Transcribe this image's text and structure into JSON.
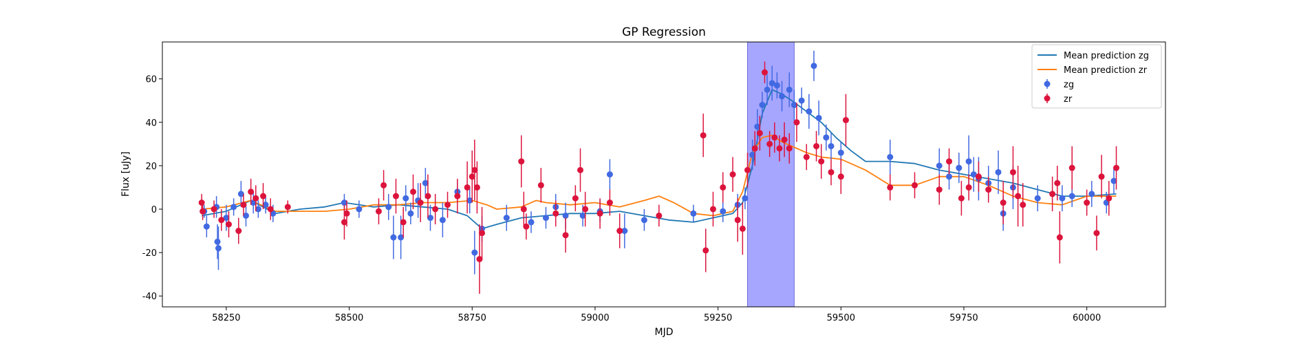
{
  "chart_data": {
    "type": "scatter",
    "title": "GP Regression",
    "xlabel": "MJD",
    "ylabel": "Flux [uJy]",
    "xlim": [
      58120,
      60160
    ],
    "ylim": [
      -45,
      77
    ],
    "x_ticks": [
      58250,
      58500,
      58750,
      59000,
      59250,
      59500,
      59750,
      60000
    ],
    "y_ticks": [
      -40,
      -20,
      0,
      20,
      40,
      60
    ],
    "grid": false,
    "legend_position": "top-right",
    "shaded_region": {
      "x_start": 59310,
      "x_end": 59405,
      "color": "#a6a6ff"
    },
    "series": [
      {
        "name": "Mean prediction zg",
        "kind": "line",
        "color": "#1f77b4",
        "x": [
          58200,
          58250,
          58300,
          58350,
          58400,
          58450,
          58490,
          58550,
          58600,
          58650,
          58700,
          58740,
          58770,
          58800,
          58850,
          58900,
          58950,
          59000,
          59050,
          59100,
          59150,
          59200,
          59240,
          59280,
          59300,
          59320,
          59340,
          59360,
          59380,
          59400,
          59430,
          59460,
          59490,
          59520,
          59550,
          59600,
          59650,
          59700,
          59750,
          59800,
          59850,
          59900,
          59950,
          60000,
          60060
        ],
        "y": [
          -3,
          -1,
          4,
          -2,
          0,
          1,
          3,
          1,
          2,
          1,
          0,
          -3,
          -9,
          -7,
          -4,
          -3,
          -2,
          -2,
          -1,
          -3,
          -5,
          -6,
          -4,
          -2,
          3,
          20,
          44,
          55,
          53,
          50,
          45,
          40,
          33,
          27,
          22,
          22,
          21,
          18,
          16,
          14,
          12,
          9,
          6,
          6,
          7
        ]
      },
      {
        "name": "Mean prediction zr",
        "kind": "line",
        "color": "#ff7f0e",
        "x": [
          58200,
          58250,
          58300,
          58350,
          58400,
          58450,
          58500,
          58550,
          58600,
          58650,
          58700,
          58750,
          58780,
          58800,
          58850,
          58880,
          58900,
          58950,
          59000,
          59050,
          59100,
          59130,
          59160,
          59200,
          59240,
          59280,
          59300,
          59320,
          59340,
          59360,
          59380,
          59400,
          59430,
          59460,
          59500,
          59550,
          59600,
          59650,
          59700,
          59750,
          59800,
          59850,
          59900,
          59950,
          60000,
          60060
        ],
        "y": [
          0,
          1,
          4,
          -1,
          -1,
          -1,
          0,
          2,
          2,
          3,
          3,
          4,
          2,
          0,
          1,
          4,
          3,
          2,
          3,
          1,
          4,
          6,
          3,
          -2,
          -3,
          -1,
          8,
          26,
          33,
          34,
          31,
          29,
          26,
          24,
          23,
          18,
          11,
          11,
          15,
          15,
          11,
          6,
          3,
          2,
          6,
          6
        ]
      },
      {
        "name": "zg",
        "kind": "errorbar",
        "color": "#4169e1",
        "points": [
          [
            58205,
            -1,
            3
          ],
          [
            58210,
            -8,
            5
          ],
          [
            58230,
            1,
            5
          ],
          [
            58232,
            -15,
            8
          ],
          [
            58234,
            -18,
            10
          ],
          [
            58250,
            -4,
            6
          ],
          [
            58265,
            1,
            4
          ],
          [
            58280,
            7,
            6
          ],
          [
            58290,
            -3,
            5
          ],
          [
            58305,
            3,
            5
          ],
          [
            58315,
            0,
            4
          ],
          [
            58330,
            2,
            4
          ],
          [
            58345,
            -2,
            4
          ],
          [
            58490,
            3,
            4
          ],
          [
            58520,
            0,
            4
          ],
          [
            58580,
            1,
            6
          ],
          [
            58590,
            -13,
            10
          ],
          [
            58605,
            -13,
            10
          ],
          [
            58615,
            5,
            6
          ],
          [
            58625,
            -2,
            5
          ],
          [
            58640,
            4,
            8
          ],
          [
            58655,
            12,
            7
          ],
          [
            58665,
            -4,
            6
          ],
          [
            58690,
            -5,
            8
          ],
          [
            58720,
            8,
            5
          ],
          [
            58745,
            4,
            6
          ],
          [
            58755,
            -20,
            10
          ],
          [
            58770,
            -9,
            6
          ],
          [
            58820,
            -4,
            6
          ],
          [
            58870,
            -6,
            5
          ],
          [
            58900,
            -4,
            5
          ],
          [
            58920,
            1,
            6
          ],
          [
            58940,
            -3,
            6
          ],
          [
            58975,
            -3,
            5
          ],
          [
            59010,
            -1,
            5
          ],
          [
            59030,
            16,
            7
          ],
          [
            59060,
            -10,
            8
          ],
          [
            59100,
            -5,
            5
          ],
          [
            59200,
            -2,
            4
          ],
          [
            59260,
            -1,
            5
          ],
          [
            59290,
            2,
            5
          ],
          [
            59305,
            5,
            5
          ],
          [
            59320,
            25,
            7
          ],
          [
            59330,
            38,
            8
          ],
          [
            59340,
            48,
            6
          ],
          [
            59350,
            55,
            7
          ],
          [
            59360,
            58,
            8
          ],
          [
            59370,
            57,
            6
          ],
          [
            59380,
            52,
            7
          ],
          [
            59395,
            55,
            8
          ],
          [
            59405,
            48,
            7
          ],
          [
            59420,
            50,
            6
          ],
          [
            59435,
            45,
            8
          ],
          [
            59445,
            66,
            7
          ],
          [
            59455,
            42,
            8
          ],
          [
            59470,
            33,
            6
          ],
          [
            59480,
            29,
            6
          ],
          [
            59500,
            26,
            5
          ],
          [
            59600,
            24,
            8
          ],
          [
            59700,
            20,
            8
          ],
          [
            59720,
            15,
            6
          ],
          [
            59740,
            19,
            7
          ],
          [
            59760,
            22,
            12
          ],
          [
            59770,
            16,
            8
          ],
          [
            59780,
            14,
            10
          ],
          [
            59800,
            12,
            8
          ],
          [
            59820,
            17,
            10
          ],
          [
            59830,
            -2,
            8
          ],
          [
            59850,
            10,
            10
          ],
          [
            59900,
            5,
            6
          ],
          [
            59950,
            5,
            6
          ],
          [
            59970,
            6,
            5
          ],
          [
            60010,
            7,
            6
          ],
          [
            60040,
            3,
            5
          ],
          [
            60055,
            13,
            6
          ]
        ]
      },
      {
        "name": "zr",
        "kind": "errorbar",
        "color": "#dc143c",
        "points": [
          [
            58200,
            3,
            4
          ],
          [
            58202,
            -1,
            4
          ],
          [
            58225,
            0,
            4
          ],
          [
            58240,
            -5,
            5
          ],
          [
            58255,
            -7,
            6
          ],
          [
            58275,
            -10,
            6
          ],
          [
            58285,
            2,
            5
          ],
          [
            58300,
            8,
            6
          ],
          [
            58310,
            5,
            6
          ],
          [
            58325,
            6,
            6
          ],
          [
            58340,
            0,
            5
          ],
          [
            58375,
            1,
            3
          ],
          [
            58490,
            -6,
            8
          ],
          [
            58495,
            -2,
            6
          ],
          [
            58560,
            -1,
            6
          ],
          [
            58570,
            11,
            7
          ],
          [
            58595,
            6,
            8
          ],
          [
            58610,
            -6,
            7
          ],
          [
            58630,
            8,
            8
          ],
          [
            58645,
            3,
            9
          ],
          [
            58660,
            6,
            10
          ],
          [
            58675,
            0,
            7
          ],
          [
            58700,
            2,
            6
          ],
          [
            58720,
            6,
            8
          ],
          [
            58740,
            10,
            12
          ],
          [
            58750,
            15,
            12
          ],
          [
            58755,
            18,
            14
          ],
          [
            58760,
            10,
            12
          ],
          [
            58765,
            -23,
            16
          ],
          [
            58770,
            -11,
            12
          ],
          [
            58850,
            22,
            12
          ],
          [
            58855,
            0,
            8
          ],
          [
            58860,
            -8,
            6
          ],
          [
            58890,
            11,
            8
          ],
          [
            58920,
            -2,
            6
          ],
          [
            58940,
            -12,
            8
          ],
          [
            58960,
            5,
            6
          ],
          [
            58970,
            18,
            10
          ],
          [
            58980,
            0,
            8
          ],
          [
            59010,
            -2,
            7
          ],
          [
            59030,
            3,
            6
          ],
          [
            59050,
            -10,
            8
          ],
          [
            59130,
            -3,
            5
          ],
          [
            59220,
            34,
            10
          ],
          [
            59225,
            -19,
            10
          ],
          [
            59240,
            0,
            8
          ],
          [
            59260,
            10,
            7
          ],
          [
            59280,
            16,
            8
          ],
          [
            59290,
            -5,
            10
          ],
          [
            59300,
            -9,
            12
          ],
          [
            59310,
            18,
            8
          ],
          [
            59325,
            28,
            8
          ],
          [
            59335,
            35,
            8
          ],
          [
            59345,
            63,
            5
          ],
          [
            59355,
            30,
            6
          ],
          [
            59365,
            33,
            7
          ],
          [
            59375,
            28,
            6
          ],
          [
            59385,
            32,
            8
          ],
          [
            59395,
            28,
            7
          ],
          [
            59410,
            40,
            9
          ],
          [
            59430,
            24,
            6
          ],
          [
            59450,
            29,
            7
          ],
          [
            59460,
            22,
            8
          ],
          [
            59480,
            17,
            6
          ],
          [
            59500,
            15,
            8
          ],
          [
            59510,
            41,
            12
          ],
          [
            59600,
            10,
            6
          ],
          [
            59650,
            11,
            6
          ],
          [
            59700,
            9,
            7
          ],
          [
            59720,
            22,
            6
          ],
          [
            59745,
            5,
            8
          ],
          [
            59760,
            10,
            6
          ],
          [
            59780,
            15,
            7
          ],
          [
            59800,
            9,
            6
          ],
          [
            59830,
            3,
            10
          ],
          [
            59850,
            17,
            12
          ],
          [
            59860,
            6,
            14
          ],
          [
            59870,
            2,
            10
          ],
          [
            59930,
            7,
            8
          ],
          [
            59940,
            12,
            8
          ],
          [
            59945,
            -13,
            12
          ],
          [
            59970,
            19,
            10
          ],
          [
            60000,
            3,
            6
          ],
          [
            60020,
            -11,
            8
          ],
          [
            60030,
            15,
            10
          ],
          [
            60045,
            5,
            8
          ],
          [
            60060,
            19,
            10
          ]
        ]
      }
    ]
  }
}
